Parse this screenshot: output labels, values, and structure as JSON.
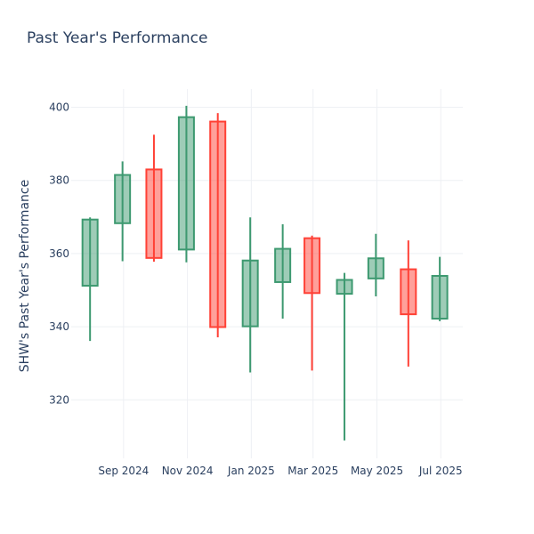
{
  "colors": {
    "increasing_line": "#3D9970",
    "increasing_fill": "rgba(61,153,112,0.5)",
    "decreasing_line": "#FF4136",
    "decreasing_fill": "rgba(255,65,54,0.5)",
    "grid": "#eef0f4",
    "axis_text": "#2a3f5f",
    "background": "#ffffff"
  },
  "chart_data": {
    "type": "candlestick",
    "title": "Past Year's Performance",
    "xlabel": "",
    "ylabel": "SHW's Past Year's Performance",
    "grid": true,
    "legend": "none",
    "ylim": [
      304,
      405
    ],
    "xlim": [
      "2024-07-13",
      "2025-07-22"
    ],
    "y_ticks": [
      320,
      340,
      360,
      380,
      400
    ],
    "x_ticks": [
      {
        "date": "2024-09-01",
        "label": "Sep 2024"
      },
      {
        "date": "2024-11-01",
        "label": "Nov 2024"
      },
      {
        "date": "2025-01-01",
        "label": "Jan 2025"
      },
      {
        "date": "2025-03-01",
        "label": "Mar 2025"
      },
      {
        "date": "2025-05-01",
        "label": "May 2025"
      },
      {
        "date": "2025-07-01",
        "label": "Jul 2025"
      }
    ],
    "candles": [
      {
        "date": "2024-07-31",
        "open": 351.2,
        "high": 369.9,
        "low": 336.1,
        "close": 369.3
      },
      {
        "date": "2024-08-31",
        "open": 368.3,
        "high": 385.2,
        "low": 357.9,
        "close": 381.5
      },
      {
        "date": "2024-09-30",
        "open": 383.0,
        "high": 392.5,
        "low": 357.8,
        "close": 358.8
      },
      {
        "date": "2024-10-31",
        "open": 361.1,
        "high": 400.4,
        "low": 357.6,
        "close": 397.3
      },
      {
        "date": "2024-11-30",
        "open": 396.1,
        "high": 398.4,
        "low": 337.1,
        "close": 339.9
      },
      {
        "date": "2024-12-31",
        "open": 340.1,
        "high": 369.9,
        "low": 327.5,
        "close": 358.1
      },
      {
        "date": "2025-01-31",
        "open": 352.2,
        "high": 368.0,
        "low": 342.2,
        "close": 361.3
      },
      {
        "date": "2025-02-28",
        "open": 364.2,
        "high": 364.9,
        "low": 328.0,
        "close": 349.2
      },
      {
        "date": "2025-03-31",
        "open": 349.0,
        "high": 354.7,
        "low": 308.9,
        "close": 352.8
      },
      {
        "date": "2025-04-30",
        "open": 353.2,
        "high": 365.4,
        "low": 348.3,
        "close": 358.7
      },
      {
        "date": "2025-05-31",
        "open": 355.7,
        "high": 363.6,
        "low": 329.1,
        "close": 343.4
      },
      {
        "date": "2025-06-30",
        "open": 342.2,
        "high": 359.1,
        "low": 341.5,
        "close": 353.9
      }
    ]
  }
}
